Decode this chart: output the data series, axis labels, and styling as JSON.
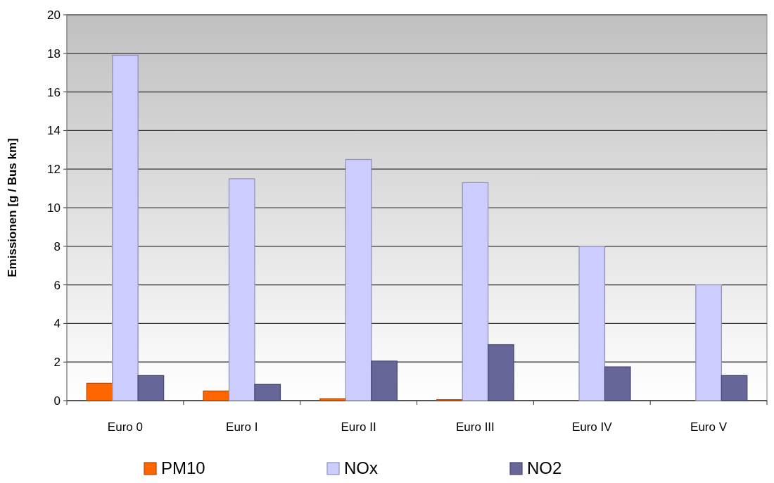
{
  "chart_data": {
    "type": "bar",
    "ylabel": "Emissionen [g / Bus km]",
    "categories": [
      "Euro 0",
      "Euro I",
      "Euro II",
      "Euro III",
      "Euro IV",
      "Euro V"
    ],
    "series": [
      {
        "name": "PM10",
        "color": "#ff6600",
        "values": [
          0.9,
          0.5,
          0.1,
          0.05,
          0,
          0
        ]
      },
      {
        "name": "NOx",
        "color": "#ccccff",
        "values": [
          17.9,
          11.5,
          12.5,
          11.3,
          8.0,
          6.0
        ]
      },
      {
        "name": "NO2",
        "color": "#666699",
        "values": [
          1.3,
          0.85,
          2.05,
          2.9,
          1.75,
          1.3
        ]
      }
    ],
    "ylim": [
      0,
      20
    ],
    "yticks": [
      0,
      2,
      4,
      6,
      8,
      10,
      12,
      14,
      16,
      18,
      20
    ],
    "grid": "y",
    "legend": "bottom"
  }
}
